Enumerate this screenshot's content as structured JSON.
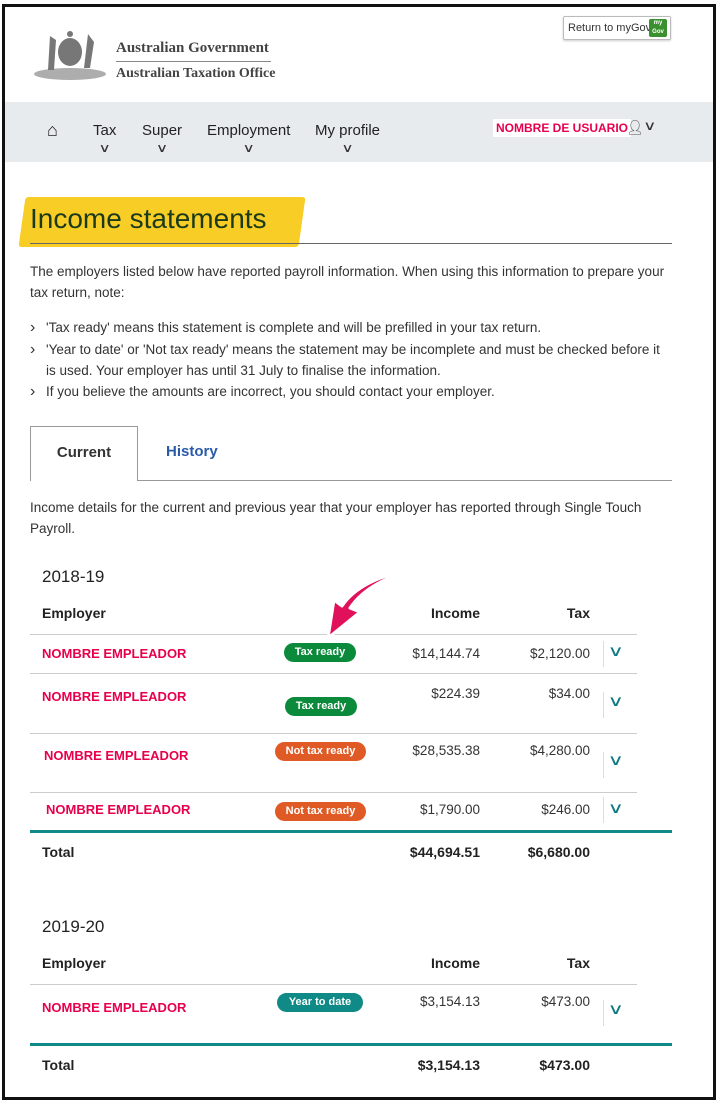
{
  "header": {
    "gov": "Australian Government",
    "agency": "Australian Taxation Office",
    "return_button": "Return to myGov",
    "mygov_badge": "my Gov"
  },
  "nav": {
    "items": [
      {
        "label": "Tax"
      },
      {
        "label": "Super"
      },
      {
        "label": "Employment"
      },
      {
        "label": "My profile"
      }
    ],
    "user": "NOMBRE DE USUARIO"
  },
  "page": {
    "title": "Income statements",
    "intro": "The employers listed below have reported payroll information. When using this information to prepare your tax return, note:",
    "notes": [
      "'Tax ready' means this statement is complete and will be prefilled in your tax return.",
      "'Year to date' or 'Not tax ready' means the statement may be incomplete and must be checked before it is used. Your employer has until 31 July to finalise the information.",
      "If you believe the amounts are incorrect, you should contact your employer."
    ],
    "tabs": [
      {
        "label": "Current"
      },
      {
        "label": "History"
      }
    ],
    "desc": "Income details for the current and previous year that your employer has reported through Single Touch Payroll."
  },
  "columns": {
    "employer": "Employer",
    "income": "Income",
    "tax": "Tax"
  },
  "colors": {
    "tax_ready": "#0a8a3a",
    "not_tax_ready": "#e05a26",
    "year_to_date": "#0f8a86",
    "highlight": "#f7c500",
    "arrow": "#e0105a"
  },
  "years": [
    {
      "year": "2018-19",
      "rows": [
        {
          "employer": "NOMBRE EMPLEADOR",
          "status": "Tax ready",
          "income": "$14,144.74",
          "tax": "$2,120.00"
        },
        {
          "employer": "NOMBRE EMPLEADOR",
          "status": "Tax ready",
          "income": "$224.39",
          "tax": "$34.00"
        },
        {
          "employer": "NOMBRE EMPLEADOR",
          "status": "Not tax ready",
          "income": "$28,535.38",
          "tax": "$4,280.00"
        },
        {
          "employer": "NOMBRE EMPLEADOR",
          "status": "Not tax ready",
          "income": "$1,790.00",
          "tax": "$246.00"
        }
      ],
      "total_label": "Total",
      "total_income": "$44,694.51",
      "total_tax": "$6,680.00"
    },
    {
      "year": "2019-20",
      "rows": [
        {
          "employer": "NOMBRE EMPLEADOR",
          "status": "Year to date",
          "income": "$3,154.13",
          "tax": "$473.00"
        }
      ],
      "total_label": "Total",
      "total_income": "$3,154.13",
      "total_tax": "$473.00"
    }
  ]
}
